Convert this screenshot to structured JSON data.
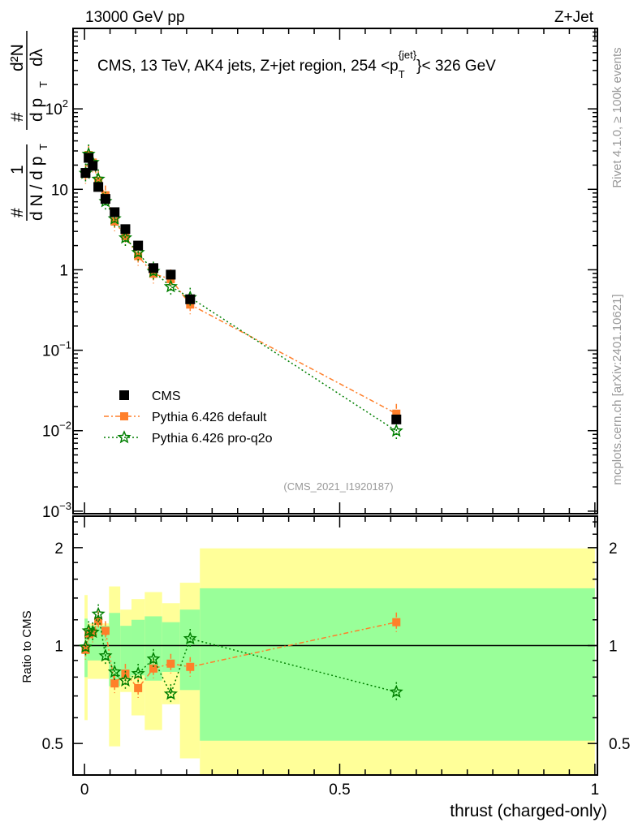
{
  "header": {
    "left": "13000 GeV pp",
    "right": "Z+Jet"
  },
  "side_text": {
    "rivet": "Rivet 4.1.0, ≥ 100k events",
    "mcplots": "mcplots.cern.ch [arXiv:2401.10621]"
  },
  "colors": {
    "cms": "#000000",
    "default": "#ff7f2a",
    "proq2o": "#007f00",
    "band_yellow": "#ffff99",
    "band_green": "#99ff99"
  },
  "chart_data": [
    {
      "type": "scatter",
      "title": "CMS, 13 TeV, AK4 jets, Z+jet region, 254 <p_T^{jet}< 326 GeV",
      "title_parts": {
        "main": "CMS, 13 TeV, AK4 jets, Z+jet region, 254 <p",
        "sub": "T",
        "sup": "{jet}",
        "tail": "}< 326 GeV"
      },
      "ylabel": "1/N dN/dp_T d²N/dp_T dλ",
      "ylabel_parts": {
        "a": "1",
        "b": "d N / d p",
        "c": "#",
        "d": "d²N",
        "e": "d p",
        "f": "dλ",
        "g": "T",
        "h": "#"
      },
      "yscale": "log",
      "ylim": [
        0.00093,
        1000
      ],
      "xlim": [
        -0.0225,
        1.005
      ],
      "yticks": [
        {
          "v": 100,
          "b": "10",
          "e": "2"
        },
        {
          "v": 10,
          "b": "10",
          "e": ""
        },
        {
          "v": 1,
          "b": "1",
          "e": ""
        },
        {
          "v": 0.1,
          "b": "10",
          "e": "−1"
        },
        {
          "v": 0.01,
          "b": "10",
          "e": "−2"
        },
        {
          "v": 0.001,
          "b": "10",
          "e": "−3"
        }
      ],
      "annotation": "(CMS_2021_I1920187)",
      "legend_position": "lower-left",
      "x": [
        0.002,
        0.008,
        0.016,
        0.027,
        0.041,
        0.059,
        0.08,
        0.105,
        0.135,
        0.169,
        0.207,
        0.611
      ],
      "series": [
        {
          "name": "CMS",
          "values": [
            16,
            24.6,
            19.6,
            10.7,
            7.6,
            5.2,
            3.2,
            2.0,
            1.05,
            0.87,
            0.43,
            0.0138
          ]
        },
        {
          "name": "Pythia 6.426 default",
          "ratio": [
            0.97,
            1.085,
            1.096,
            1.19,
            1.11,
            0.765,
            0.82,
            0.74,
            0.85,
            0.88,
            0.86,
            1.18
          ]
        },
        {
          "name": "Pythia 6.426 pro-q2o",
          "ratio": [
            0.99,
            1.11,
            1.1,
            1.25,
            0.93,
            0.83,
            0.78,
            0.82,
            0.91,
            0.71,
            1.05,
            0.72
          ]
        }
      ]
    },
    {
      "type": "scatter",
      "ylabel": "Ratio to CMS",
      "xlabel": "thrust (charged-only)",
      "yscale": "log",
      "ylim": [
        0.4,
        2.5
      ],
      "yticks": [
        "2",
        "1",
        "0.5"
      ],
      "ytick_values": [
        2,
        1,
        0.5
      ],
      "xticks": [
        "0",
        "0.5",
        "1"
      ],
      "xtick_values": [
        0,
        0.5,
        1
      ],
      "band_edges": [
        0,
        0.006,
        0.048,
        0.07,
        0.092,
        0.118,
        0.152,
        0.187,
        0.226,
        1.0
      ],
      "band_yellow": [
        [
          0.59,
          1.43
        ],
        [
          0.79,
          1.17
        ],
        [
          0.49,
          1.52
        ],
        [
          0.72,
          1.29
        ],
        [
          0.61,
          1.39
        ],
        [
          0.55,
          1.46
        ],
        [
          0.66,
          1.35
        ],
        [
          0.45,
          1.56
        ],
        [
          0.35,
          1.99
        ]
      ],
      "band_green": [
        [
          0.8,
          1.21
        ],
        [
          0.9,
          1.15
        ],
        [
          0.75,
          1.26
        ],
        [
          0.8,
          1.15
        ],
        [
          0.81,
          1.2
        ],
        [
          0.78,
          1.23
        ],
        [
          0.83,
          1.18
        ],
        [
          0.73,
          1.29
        ],
        [
          0.51,
          1.5
        ]
      ]
    }
  ]
}
